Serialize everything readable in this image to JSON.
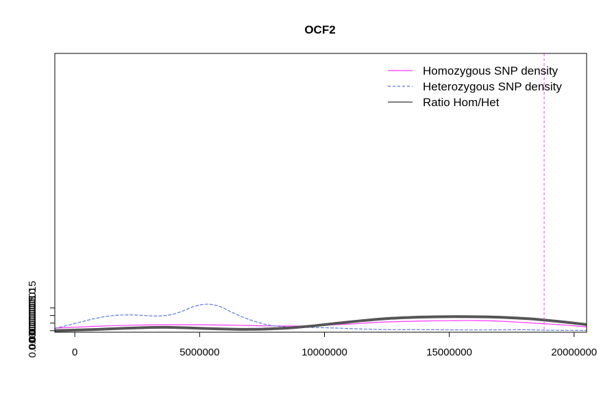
{
  "chart_data": {
    "type": "line",
    "title": "OCF2",
    "xlabel": "",
    "ylabel": "",
    "xlim": [
      -800000,
      20500000
    ],
    "ylim": [
      -1e-08,
      1.83e-06
    ],
    "x_ticks": [
      0,
      5000000,
      10000000,
      15000000,
      20000000
    ],
    "x_tick_labels": [
      "0",
      "5000000",
      "10000000",
      "15000000",
      "20000000"
    ],
    "y_ticks": [
      0,
      5e-08,
      1e-07,
      1.5e-07
    ],
    "y_tick_labels": [
      "0.00000000",
      "0.00000005",
      "0.00000010",
      "0.00000015"
    ],
    "grid": false,
    "legend_position": "top-right",
    "vline": {
      "x": 18800000,
      "color": "#ee44ee",
      "style": "dashed"
    },
    "series": [
      {
        "name": "Homozygous SNP density",
        "color": "#ff33ff",
        "style": "solid",
        "width": 1.2,
        "x": [
          -800000,
          0,
          1000000,
          2000000,
          3000000,
          4000000,
          5000000,
          6000000,
          7000000,
          8000000,
          9000000,
          10000000,
          11000000,
          12000000,
          13000000,
          14000000,
          15000000,
          16000000,
          17000000,
          18000000,
          19000000,
          20000000,
          20500000
        ],
        "y": [
          1.7e-08,
          2.3e-08,
          3e-08,
          3.5e-08,
          3.8e-08,
          3.9e-08,
          3.9e-08,
          3.7e-08,
          3.4e-08,
          3.1e-08,
          3.1e-08,
          3.6e-08,
          4.4e-08,
          5.4e-08,
          6e-08,
          6.4e-08,
          6.6e-08,
          6.7e-08,
          6.3e-08,
          5.4e-08,
          4.4e-08,
          3.2e-08,
          2.5e-08
        ]
      },
      {
        "name": "Heterozygous SNP density",
        "color": "#5577dd",
        "style": "dashed",
        "width": 1.2,
        "x": [
          -800000,
          -300000,
          300000,
          800000,
          1300000,
          1800000,
          2300000,
          2800000,
          3300000,
          3800000,
          4300000,
          4800000,
          5300000,
          5800000,
          6300000,
          6800000,
          7300000,
          7800000,
          8300000,
          8800000,
          9500000,
          10500000,
          11500000,
          12500000,
          13500000,
          14500000,
          15500000,
          16500000,
          17500000,
          18000000,
          19000000,
          20000000,
          20500000
        ],
        "y": [
          1.5e-08,
          3.5e-08,
          6e-08,
          8e-08,
          9.5e-08,
          1.03e-07,
          1.04e-07,
          1e-07,
          9.7e-08,
          1.04e-07,
          1.28e-07,
          1.61e-07,
          1.75e-07,
          1.6e-07,
          1.21e-07,
          8.5e-08,
          5.7e-08,
          3.6e-08,
          2.7e-08,
          2.2e-08,
          2.1e-08,
          1.7e-08,
          1.1e-08,
          7e-09,
          7e-09,
          6e-09,
          5e-09,
          5e-09,
          6e-09,
          6e-09,
          3e-09,
          2e-09,
          1e-09
        ]
      },
      {
        "name": "Ratio Hom/Het",
        "color": "#555555",
        "style": "solid",
        "width": 4,
        "x": [
          -800000,
          0,
          1000000,
          2000000,
          3000000,
          3700000,
          4500000,
          5500000,
          6500000,
          7000000,
          7500000,
          8500000,
          9500000,
          10500000,
          11500000,
          12500000,
          13500000,
          14500000,
          15300000,
          16500000,
          17500000,
          18500000,
          19500000,
          20500000
        ],
        "y": [
          1e-09,
          4e-09,
          9e-09,
          1.6e-08,
          2.1e-08,
          2.2e-08,
          1.9e-08,
          1.3e-08,
          9e-09,
          9e-09,
          1e-08,
          1.7e-08,
          3.1e-08,
          4.9e-08,
          6.6e-08,
          8e-08,
          8.8e-08,
          9.2e-08,
          9.3e-08,
          9.1e-08,
          8.5e-08,
          7.5e-08,
          5.9e-08,
          4e-08
        ]
      }
    ]
  }
}
